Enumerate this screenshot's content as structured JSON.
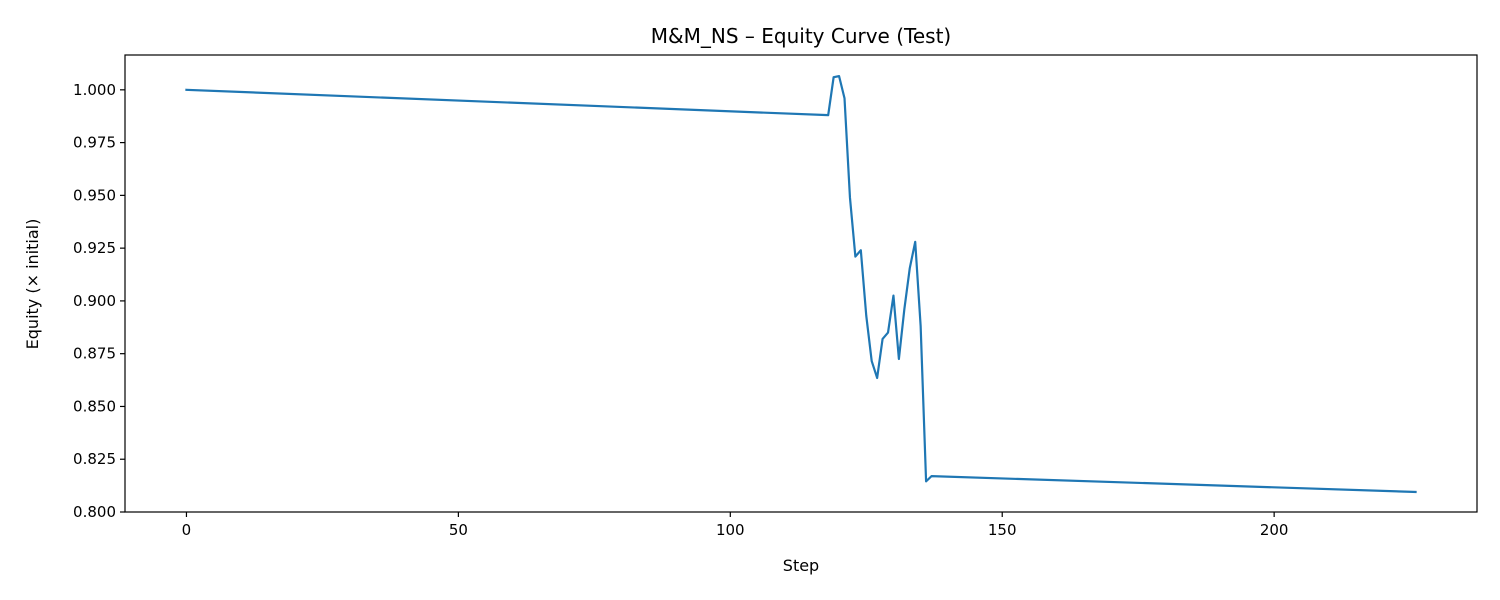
{
  "chart_data": {
    "type": "line",
    "title": "M&M_NS – Equity Curve (Test)",
    "xlabel": "Step",
    "ylabel": "Equity (× initial)",
    "xlim": [
      -11.3,
      237.3
    ],
    "ylim": [
      0.8,
      1.0165
    ],
    "xticks": [
      0,
      50,
      100,
      150,
      200
    ],
    "xtick_labels": [
      "0",
      "50",
      "100",
      "150",
      "200"
    ],
    "yticks": [
      0.8,
      0.825,
      0.85,
      0.875,
      0.9,
      0.925,
      0.95,
      0.975,
      1.0
    ],
    "ytick_labels": [
      "0.800",
      "0.825",
      "0.850",
      "0.875",
      "0.900",
      "0.925",
      "0.950",
      "0.975",
      "1.000"
    ],
    "grid": false,
    "color": "#1f77b4",
    "series": [
      {
        "x": [
          0,
          118,
          119,
          120,
          121,
          122,
          123,
          124,
          125,
          126,
          127,
          128,
          129,
          130,
          131,
          132,
          133,
          134,
          135,
          136,
          137,
          226
        ],
        "y": [
          1.0,
          0.988,
          1.006,
          1.0065,
          0.996,
          0.949,
          0.921,
          0.924,
          0.893,
          0.8715,
          0.8635,
          0.882,
          0.885,
          0.9025,
          0.8725,
          0.896,
          0.9155,
          0.928,
          0.888,
          0.8145,
          0.817,
          0.8095
        ]
      }
    ]
  }
}
